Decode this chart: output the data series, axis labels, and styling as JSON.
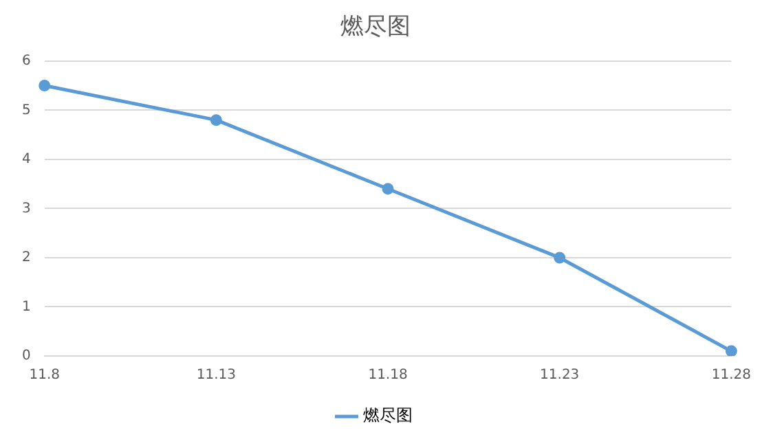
{
  "chart_data": {
    "type": "line",
    "title": "燃尽图",
    "categories": [
      "11.8",
      "11.13",
      "11.18",
      "11.23",
      "11.28"
    ],
    "series": [
      {
        "name": "燃尽图",
        "color": "#5b9bd5",
        "values": [
          5.5,
          4.8,
          3.4,
          2.0,
          0.1
        ]
      }
    ],
    "ylim": [
      0,
      6
    ],
    "yticks": [
      0,
      1,
      2,
      3,
      4,
      5,
      6
    ],
    "grid": "y",
    "legend": "bottom",
    "marker": "circle",
    "line_style": "solid"
  }
}
